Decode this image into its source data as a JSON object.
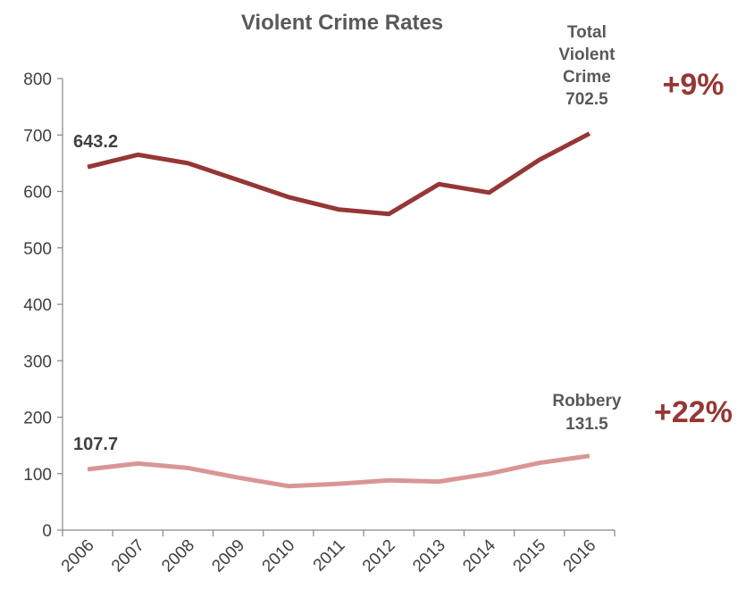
{
  "chart_data": {
    "type": "line",
    "title": "Violent Crime Rates",
    "xlabel": "",
    "ylabel": "",
    "categories": [
      "2006",
      "2007",
      "2008",
      "2009",
      "2010",
      "2011",
      "2012",
      "2013",
      "2014",
      "2015",
      "2016"
    ],
    "ylim": [
      0,
      800
    ],
    "yticks": [
      0,
      100,
      200,
      300,
      400,
      500,
      600,
      700,
      800
    ],
    "grid": false,
    "series": [
      {
        "name": "Total Violent Crime",
        "label_lines": [
          "Total",
          "Violent",
          "Crime"
        ],
        "color": "#953735",
        "values": [
          643.2,
          665,
          650,
          620,
          590,
          568,
          560,
          613,
          598,
          656,
          702.5
        ],
        "start_label": "643.2",
        "end_label": "702.5",
        "change": "+9%",
        "change_color": "#953735"
      },
      {
        "name": "Robbery",
        "label_lines": [
          "Robbery"
        ],
        "color": "#D99694",
        "values": [
          107.7,
          118,
          110,
          93,
          78,
          82,
          88,
          86,
          100,
          119,
          131.5
        ],
        "start_label": "107.7",
        "end_label": "131.5",
        "change": "+22%",
        "change_color": "#953735"
      }
    ]
  }
}
